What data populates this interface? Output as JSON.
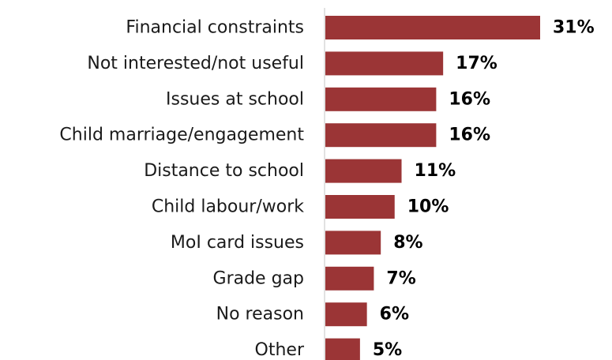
{
  "chart_data": {
    "type": "bar",
    "orientation": "horizontal",
    "categories": [
      "Financial constraints",
      "Not interested/not useful",
      "Issues at school",
      "Child marriage/engagement",
      "Distance to school",
      "Child labour/work",
      "MoI card issues",
      "Grade gap",
      "No reason",
      "Other"
    ],
    "values": [
      31,
      17,
      16,
      16,
      11,
      10,
      8,
      7,
      6,
      5
    ],
    "value_labels": [
      "31%",
      "17%",
      "16%",
      "16%",
      "11%",
      "10%",
      "8%",
      "7%",
      "6%",
      "5%"
    ],
    "xlim": [
      0,
      31
    ],
    "grid": false,
    "colors": {
      "bar": "#9b3536",
      "axis": "#d9d9d9",
      "label": "#1a1a1a",
      "value": "#000000"
    }
  }
}
